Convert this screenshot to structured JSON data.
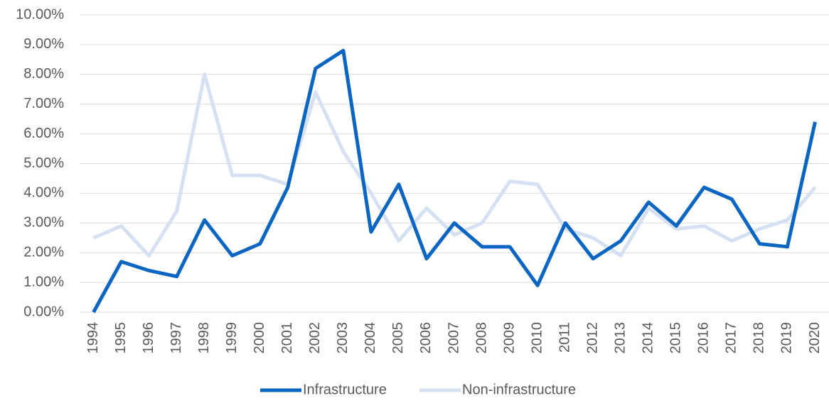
{
  "chart_data": {
    "type": "line",
    "categories": [
      "1994",
      "1995",
      "1996",
      "1997",
      "1998",
      "1999",
      "2000",
      "2001",
      "2002",
      "2003",
      "2004",
      "2005",
      "2006",
      "2007",
      "2008",
      "2009",
      "2010",
      "2011",
      "2012",
      "2013",
      "2014",
      "2015",
      "2016",
      "2017",
      "2018",
      "2019",
      "2020"
    ],
    "series": [
      {
        "name": "Infrastructure",
        "color": "#0a66c2",
        "values": [
          0,
          1.7,
          1.4,
          1.2,
          3.1,
          1.9,
          2.3,
          4.2,
          8.2,
          8.8,
          2.7,
          4.3,
          1.8,
          3.0,
          2.2,
          2.2,
          0.9,
          3.0,
          1.8,
          2.4,
          3.7,
          2.9,
          4.2,
          3.8,
          2.3,
          2.2,
          6.4
        ]
      },
      {
        "name": "Non-infrastructure",
        "color": "#d5e1f2",
        "values": [
          2.5,
          2.9,
          1.9,
          3.4,
          8.0,
          4.6,
          4.6,
          4.3,
          7.4,
          5.4,
          4.0,
          2.4,
          3.5,
          2.6,
          3.0,
          4.4,
          4.3,
          2.8,
          2.5,
          1.9,
          3.5,
          2.8,
          2.9,
          2.4,
          2.8,
          3.1,
          4.2
        ]
      }
    ],
    "ylim": [
      0,
      10
    ],
    "yticks": [
      {
        "value": 0,
        "label": "0.00%"
      },
      {
        "value": 1,
        "label": "1.00%"
      },
      {
        "value": 2,
        "label": "2.00%"
      },
      {
        "value": 3,
        "label": "3.00%"
      },
      {
        "value": 4,
        "label": "4.00%"
      },
      {
        "value": 5,
        "label": "5.00%"
      },
      {
        "value": 6,
        "label": "6.00%"
      },
      {
        "value": 7,
        "label": "7.00%"
      },
      {
        "value": 8,
        "label": "8.00%"
      },
      {
        "value": 9,
        "label": "9.00%"
      },
      {
        "value": 10,
        "label": "10.00%"
      }
    ],
    "grid": true,
    "legend": "bottom"
  }
}
